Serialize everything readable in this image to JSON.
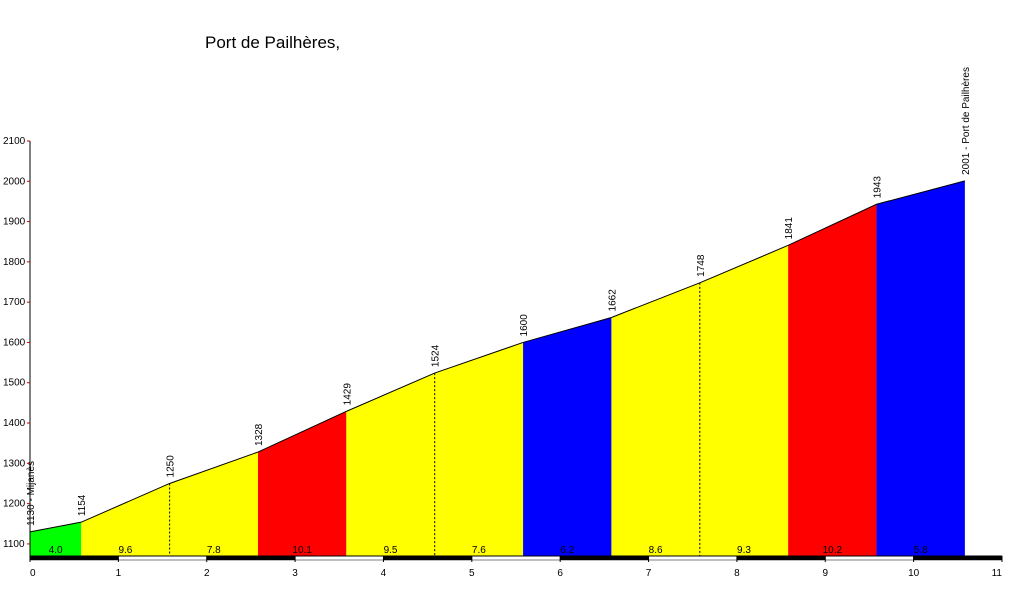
{
  "chart_data": {
    "type": "climb-profile",
    "title": "Port de Pailhères,",
    "x": [
      0,
      0.58,
      1.58,
      2.58,
      3.58,
      4.58,
      5.58,
      6.58,
      7.58,
      8.58,
      9.58,
      10.58
    ],
    "values": [
      1130,
      1154,
      1250,
      1328,
      1429,
      1524,
      1600,
      1662,
      1748,
      1841,
      1943,
      2001
    ],
    "value_labels": [
      "1130 - Mijanès",
      "1154",
      "1250",
      "1328",
      "1429",
      "1524",
      "1600",
      "1662",
      "1748",
      "1841",
      "1943",
      "2001 - Port de Pailhères"
    ],
    "gradients": [
      4.0,
      9.6,
      7.8,
      10.1,
      9.5,
      7.6,
      6.2,
      8.6,
      9.3,
      10.2,
      5.8
    ],
    "gradient_labels": [
      "4.0",
      "9.6",
      "7.8",
      "10.1",
      "9.5",
      "7.6",
      "6.2",
      "8.6",
      "9.3",
      "10.2",
      "5.8"
    ],
    "segment_colors": [
      "#00ff00",
      "#ffff00",
      "#ffff00",
      "#ff0000",
      "#ffff00",
      "#ffff00",
      "#0000ff",
      "#ffff00",
      "#ffff00",
      "#ff0000",
      "#0000ff"
    ],
    "xlim": [
      0,
      11
    ],
    "xticks": [
      0,
      1,
      2,
      3,
      4,
      5,
      6,
      7,
      8,
      9,
      10,
      11
    ],
    "ylim": [
      1070,
      2100
    ],
    "yticks": [
      1100,
      1200,
      1300,
      1400,
      1500,
      1600,
      1700,
      1800,
      1900,
      2000,
      2100
    ]
  }
}
